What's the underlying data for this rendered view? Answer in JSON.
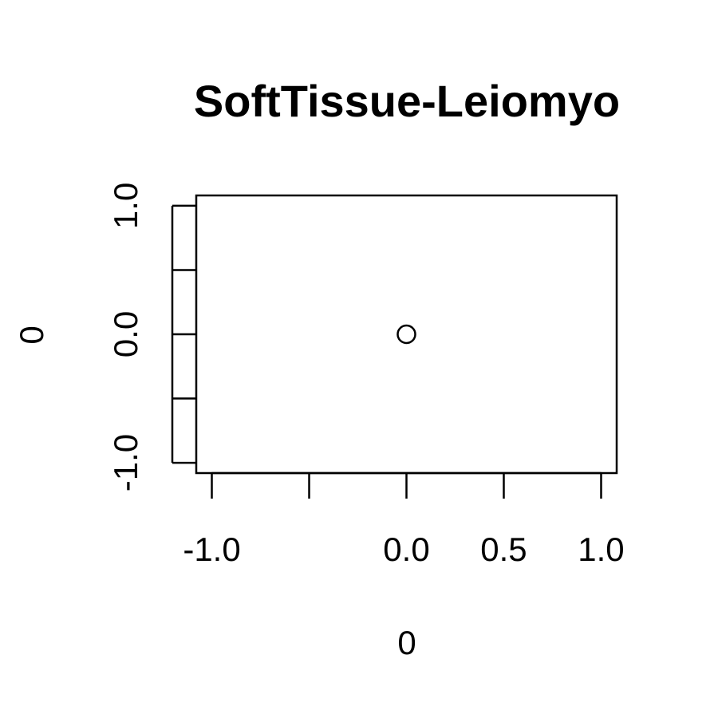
{
  "chart_data": {
    "type": "scatter",
    "title": "SoftTissue-Leiomyo",
    "xlabel": "0",
    "ylabel": "0",
    "xlim": [
      -1.08,
      1.08
    ],
    "ylim": [
      -1.08,
      1.08
    ],
    "x_ticks": [
      -1.0,
      -0.5,
      0.0,
      0.5,
      1.0
    ],
    "x_tick_labels": [
      "-1.0",
      "",
      "0.0",
      "0.5",
      "1.0"
    ],
    "y_ticks": [
      -1.0,
      -0.5,
      0.0,
      0.5,
      1.0
    ],
    "y_tick_labels": [
      "-1.0",
      "",
      "0.0",
      "",
      "1.0"
    ],
    "grid": false,
    "series": [
      {
        "x": [
          0.0
        ],
        "y": [
          0.0
        ],
        "marker": "open-circle",
        "color": "#000000"
      }
    ]
  }
}
